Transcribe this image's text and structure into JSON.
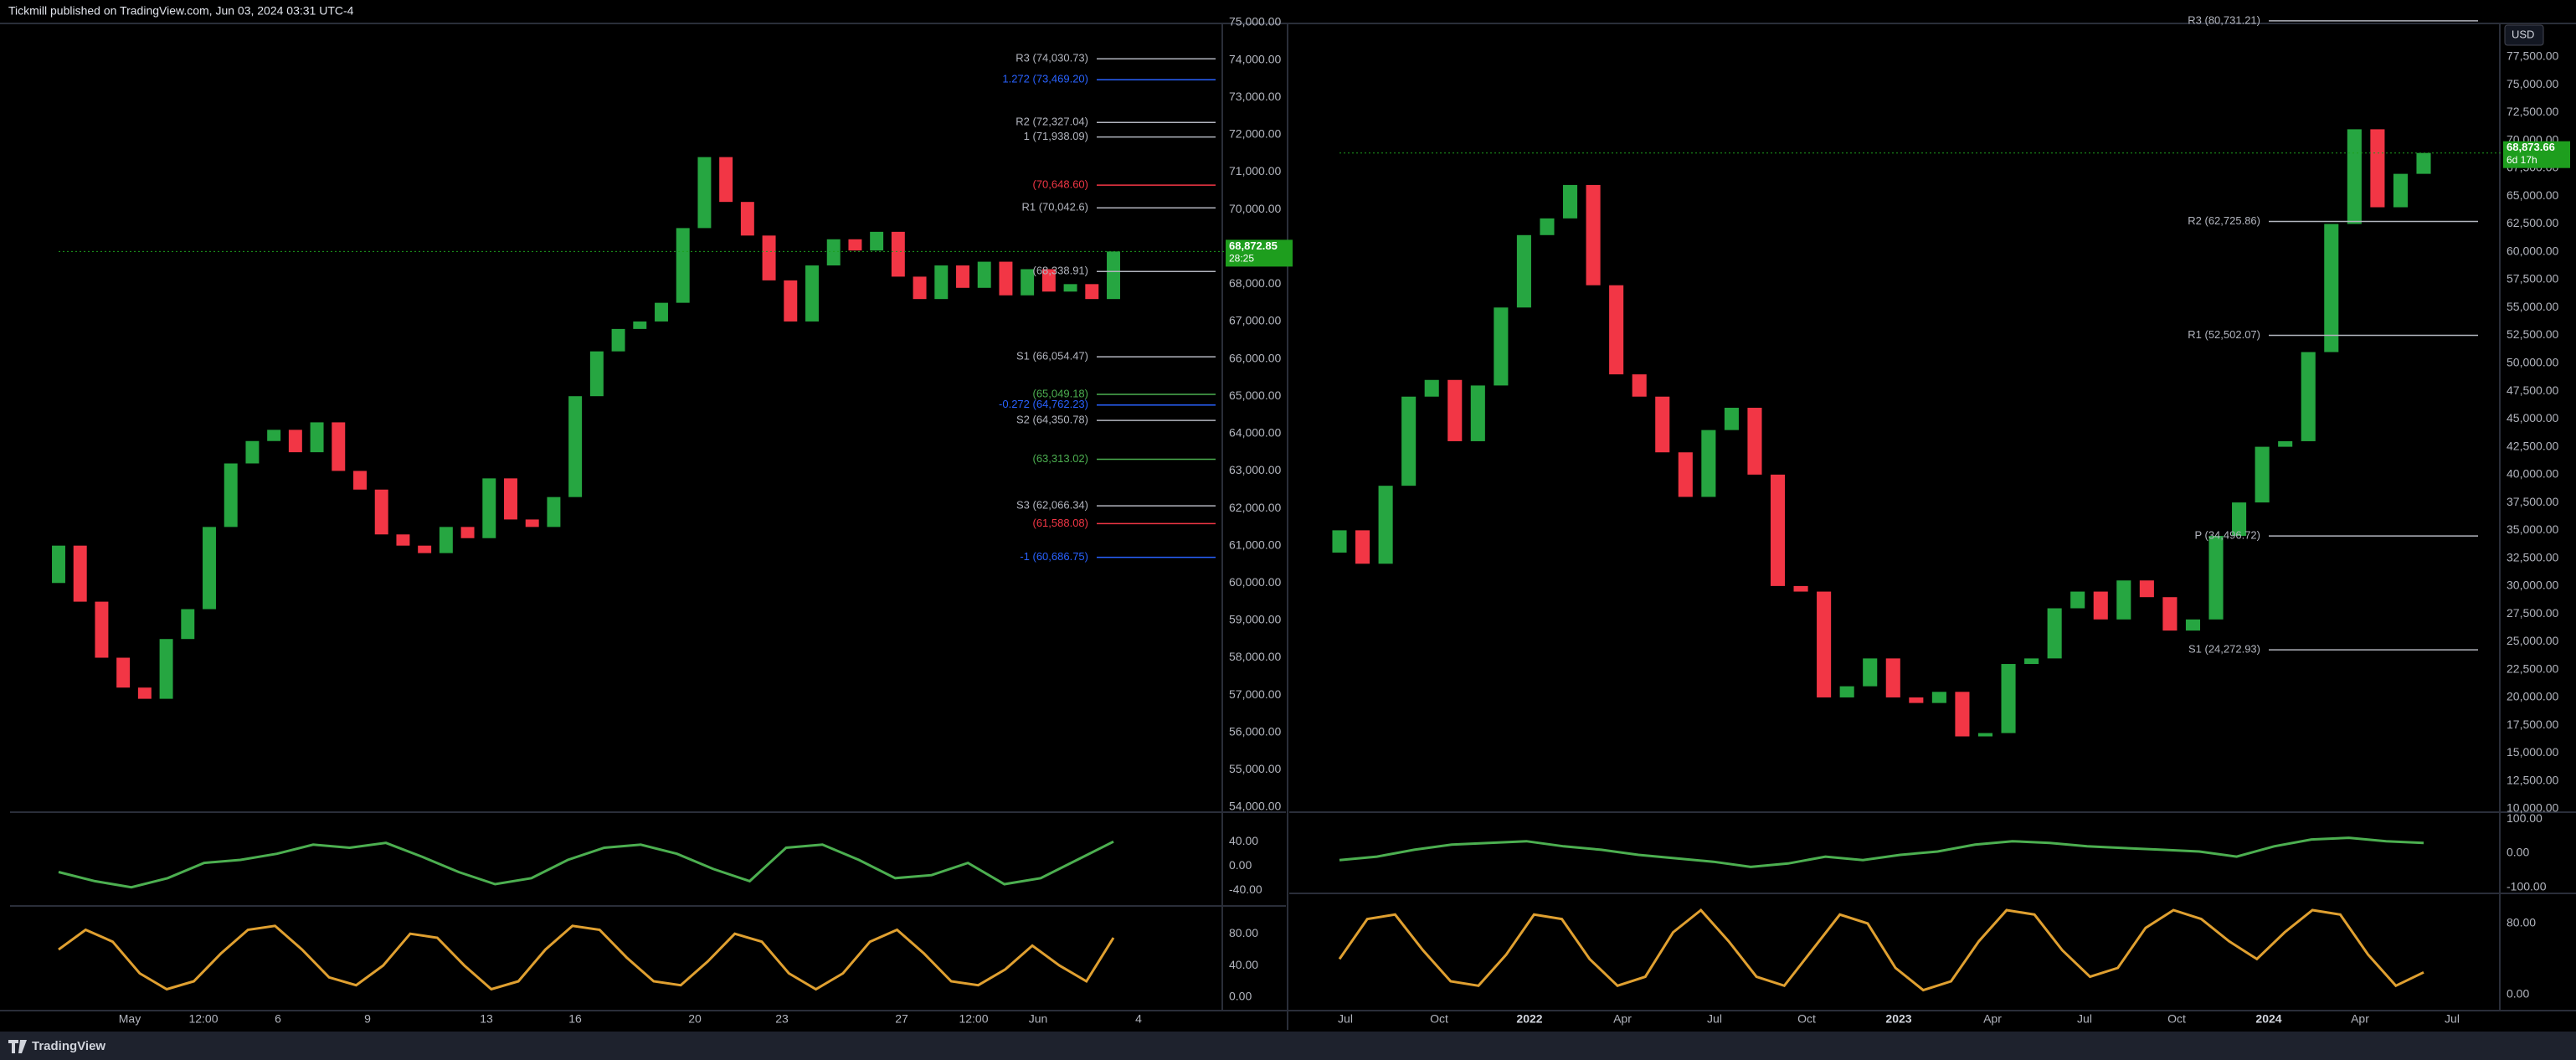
{
  "header": {
    "publisher": "Tickmill published on TradingView.com, Jun 03, 2024 03:31 UTC-4"
  },
  "footer": {
    "brand": "TradingView"
  },
  "chart_data": [
    {
      "type": "candlestick",
      "up_color": "#26a641",
      "down_color": "#f23645",
      "ylim": [
        54000,
        75000
      ],
      "yticks": [
        {
          "value": 54000,
          "label": "54,000.00"
        },
        {
          "value": 55000,
          "label": "55,000.00"
        },
        {
          "value": 56000,
          "label": "56,000.00"
        },
        {
          "value": 57000,
          "label": "57,000.00"
        },
        {
          "value": 58000,
          "label": "58,000.00"
        },
        {
          "value": 59000,
          "label": "59,000.00"
        },
        {
          "value": 60000,
          "label": "60,000.00"
        },
        {
          "value": 61000,
          "label": "61,000.00"
        },
        {
          "value": 62000,
          "label": "62,000.00"
        },
        {
          "value": 63000,
          "label": "63,000.00"
        },
        {
          "value": 64000,
          "label": "64,000.00"
        },
        {
          "value": 65000,
          "label": "65,000.00"
        },
        {
          "value": 66000,
          "label": "66,000.00"
        },
        {
          "value": 67000,
          "label": "67,000.00"
        },
        {
          "value": 68000,
          "label": "68,000.00"
        },
        {
          "value": 69000,
          "label": "69,000.00"
        },
        {
          "value": 70000,
          "label": "70,000.00"
        },
        {
          "value": 71000,
          "label": "71,000.00"
        },
        {
          "value": 72000,
          "label": "72,000.00"
        },
        {
          "value": 73000,
          "label": "73,000.00"
        },
        {
          "value": 74000,
          "label": "74,000.00"
        },
        {
          "value": 75000,
          "label": "75,000.00"
        }
      ],
      "open": [
        60000,
        61000,
        59500,
        58000,
        57200,
        56900,
        58500,
        59300,
        61500,
        63200,
        63800,
        64100,
        63500,
        64300,
        63000,
        62500,
        61300,
        61000,
        60800,
        61500,
        61200,
        62800,
        61700,
        61500,
        62300,
        65000,
        66200,
        66800,
        67000,
        67500,
        69500,
        71400,
        70200,
        69300,
        68100,
        67000,
        68500,
        69200,
        68900,
        69400,
        68200,
        67600,
        68500,
        67900,
        68600,
        67700,
        68400,
        67800,
        68000,
        67600
      ],
      "close": [
        61000,
        59500,
        58000,
        57200,
        56900,
        58500,
        59300,
        61500,
        63200,
        63800,
        64100,
        63500,
        64300,
        63000,
        62500,
        61300,
        61000,
        60800,
        61500,
        61200,
        62800,
        61700,
        61500,
        62300,
        65000,
        66200,
        66800,
        67000,
        67500,
        69500,
        71400,
        70200,
        69300,
        68100,
        67000,
        68500,
        69200,
        68900,
        69400,
        68200,
        67600,
        68500,
        67900,
        68600,
        67700,
        68400,
        67800,
        68000,
        67600,
        68872.85
      ],
      "xlabels": [
        "May",
        "12:00",
        "6",
        "9",
        "13",
        "16",
        "20",
        "23",
        "27",
        "12:00",
        "Jun",
        "4"
      ],
      "levels": [
        {
          "label": "R3 (74,030.73)",
          "value": 74030.73,
          "color": "#b2b5be"
        },
        {
          "label": "1.272 (73,469.20)",
          "value": 73469.2,
          "color": "#2962ff"
        },
        {
          "label": "R2 (72,327.04)",
          "value": 72327.04,
          "color": "#b2b5be"
        },
        {
          "label": "1 (71,938.09)",
          "value": 71938.09,
          "color": "#b2b5be"
        },
        {
          "label": "(70,648.60)",
          "value": 70648.6,
          "color": "#f23645"
        },
        {
          "label": "R1 (70,042.6)",
          "value": 70042.6,
          "color": "#b2b5be"
        },
        {
          "label": "(68,338.91)",
          "value": 68338.91,
          "color": "#b2b5be"
        },
        {
          "label": "S1 (66,054.47)",
          "value": 66054.47,
          "color": "#b2b5be"
        },
        {
          "label": "(65,049.18)",
          "value": 65049.18,
          "color": "#4caf50"
        },
        {
          "label": "-0.272 (64,762.23)",
          "value": 64762.23,
          "color": "#2962ff"
        },
        {
          "label": "S2 (64,350.78)",
          "value": 64350.78,
          "color": "#b2b5be"
        },
        {
          "label": "(63,313.02)",
          "value": 63313.02,
          "color": "#4caf50"
        },
        {
          "label": "S3 (62,066.34)",
          "value": 62066.34,
          "color": "#b2b5be"
        },
        {
          "label": "(61,588.08)",
          "value": 61588.08,
          "color": "#f23645"
        },
        {
          "label": "-1 (60,686.75)",
          "value": 60686.75,
          "color": "#2962ff"
        }
      ],
      "last_price": {
        "value": 68872.85,
        "label": "68,872.85"
      },
      "countdown": "28:25",
      "last_color": "#1e9e1e",
      "osc1": {
        "ylim": [
          -63,
          83
        ],
        "yticks": [
          {
            "value": 40,
            "label": "40.00"
          },
          {
            "value": 0,
            "label": "0.00"
          },
          {
            "value": -40,
            "label": "-40.00"
          }
        ],
        "color": "#4caf50",
        "values": [
          -10,
          -25,
          -35,
          -20,
          5,
          10,
          20,
          35,
          30,
          38,
          15,
          -10,
          -30,
          -20,
          10,
          30,
          35,
          20,
          -5,
          -25,
          30,
          35,
          10,
          -20,
          -15,
          5,
          -30,
          -20,
          10,
          40
        ]
      },
      "osc2": {
        "ylim": [
          -17,
          113
        ],
        "yticks": [
          {
            "value": 80,
            "label": "80.00"
          },
          {
            "value": 40,
            "label": "40.00"
          },
          {
            "value": 0,
            "label": "0.00"
          }
        ],
        "color": "#e0a030",
        "values": [
          60,
          85,
          70,
          30,
          10,
          20,
          55,
          85,
          90,
          60,
          25,
          15,
          40,
          80,
          75,
          40,
          10,
          20,
          60,
          90,
          85,
          50,
          20,
          15,
          45,
          80,
          70,
          30,
          10,
          30,
          70,
          85,
          55,
          20,
          15,
          35,
          65,
          40,
          20,
          75
        ]
      }
    },
    {
      "type": "candlestick",
      "up_color": "#26a641",
      "down_color": "#f23645",
      "ylim": [
        10000,
        80500
      ],
      "yticks": [
        {
          "value": 10000,
          "label": "10,000.00"
        },
        {
          "value": 12500,
          "label": "12,500.00"
        },
        {
          "value": 15000,
          "label": "15,000.00"
        },
        {
          "value": 17500,
          "label": "17,500.00"
        },
        {
          "value": 20000,
          "label": "20,000.00"
        },
        {
          "value": 22500,
          "label": "22,500.00"
        },
        {
          "value": 25000,
          "label": "25,000.00"
        },
        {
          "value": 27500,
          "label": "27,500.00"
        },
        {
          "value": 30000,
          "label": "30,000.00"
        },
        {
          "value": 32500,
          "label": "32,500.00"
        },
        {
          "value": 35000,
          "label": "35,000.00"
        },
        {
          "value": 37500,
          "label": "37,500.00"
        },
        {
          "value": 40000,
          "label": "40,000.00"
        },
        {
          "value": 42500,
          "label": "42,500.00"
        },
        {
          "value": 45000,
          "label": "45,000.00"
        },
        {
          "value": 47500,
          "label": "47,500.00"
        },
        {
          "value": 50000,
          "label": "50,000.00"
        },
        {
          "value": 52500,
          "label": "52,500.00"
        },
        {
          "value": 55000,
          "label": "55,000.00"
        },
        {
          "value": 57500,
          "label": "57,500.00"
        },
        {
          "value": 60000,
          "label": "60,000.00"
        },
        {
          "value": 62500,
          "label": "62,500.00"
        },
        {
          "value": 65000,
          "label": "65,000.00"
        },
        {
          "value": 67500,
          "label": "67,500.00"
        },
        {
          "value": 70000,
          "label": "70,000.00"
        },
        {
          "value": 72500,
          "label": "72,500.00"
        },
        {
          "value": 75000,
          "label": "75,000.00"
        },
        {
          "value": 77500,
          "label": "77,500.00"
        }
      ],
      "open": [
        33000,
        35000,
        32000,
        39000,
        47000,
        48500,
        43000,
        48000,
        55000,
        61500,
        63000,
        66000,
        57000,
        49000,
        47000,
        42000,
        38000,
        44000,
        46000,
        40000,
        30000,
        29500,
        20000,
        21000,
        23500,
        20000,
        19500,
        20500,
        16500,
        16800,
        23000,
        23500,
        28000,
        29500,
        27000,
        30500,
        29000,
        26000,
        27000,
        34500,
        37500,
        42500,
        43000,
        51000,
        62500,
        71000,
        64000,
        67000
      ],
      "close": [
        35000,
        32000,
        39000,
        47000,
        48500,
        43000,
        48000,
        55000,
        61500,
        63000,
        66000,
        57000,
        49000,
        47000,
        42000,
        38000,
        44000,
        46000,
        40000,
        30000,
        29500,
        20000,
        21000,
        23500,
        20000,
        19500,
        20500,
        16500,
        16800,
        23000,
        23500,
        28000,
        29500,
        27000,
        30500,
        29000,
        26000,
        27000,
        34500,
        37500,
        42500,
        43000,
        51000,
        62500,
        71000,
        64000,
        67000,
        68873.66
      ],
      "xlabels": [
        "Jul",
        "Oct",
        "2022",
        "Apr",
        "Jul",
        "Oct",
        "2023",
        "Apr",
        "Jul",
        "Oct",
        "2024",
        "Apr",
        "Jul"
      ],
      "levels": [
        {
          "label": "R3 (80,731.21)",
          "value": 80731.21,
          "color": "#b2b5be"
        },
        {
          "label": "R2 (62,725.86)",
          "value": 62725.86,
          "color": "#b2b5be"
        },
        {
          "label": "R1 (52,502.07)",
          "value": 52502.07,
          "color": "#b2b5be"
        },
        {
          "label": "P (34,496.72)",
          "value": 34496.72,
          "color": "#b2b5be"
        },
        {
          "label": "S1 (24,272.93)",
          "value": 24272.93,
          "color": "#b2b5be"
        }
      ],
      "last_price": {
        "value": 68873.66,
        "label": "68,873.66"
      },
      "countdown": "6d 17h",
      "last_color": "#1e9e1e",
      "currency": "USD",
      "osc1": {
        "ylim": [
          -110,
          110
        ],
        "yticks": [
          {
            "value": 100,
            "label": "100.00"
          },
          {
            "value": 0,
            "label": "0.00"
          },
          {
            "value": -100,
            "label": "-100.00"
          }
        ],
        "color": "#4caf50",
        "values": [
          -20,
          -10,
          10,
          25,
          30,
          35,
          20,
          10,
          -5,
          -15,
          -25,
          -40,
          -30,
          -10,
          -20,
          -5,
          5,
          25,
          35,
          30,
          20,
          15,
          10,
          5,
          -10,
          20,
          40,
          45,
          35,
          30
        ]
      },
      "osc2": {
        "ylim": [
          -18,
          111
        ],
        "yticks": [
          {
            "value": 80,
            "label": "80.00"
          },
          {
            "value": 0,
            "label": "0.00"
          }
        ],
        "color": "#e0a030",
        "values": [
          40,
          85,
          90,
          50,
          15,
          10,
          45,
          90,
          85,
          40,
          10,
          20,
          70,
          95,
          60,
          20,
          10,
          50,
          90,
          80,
          30,
          5,
          15,
          60,
          95,
          90,
          50,
          20,
          30,
          75,
          95,
          85,
          60,
          40,
          70,
          95,
          90,
          45,
          10,
          25
        ]
      }
    }
  ]
}
